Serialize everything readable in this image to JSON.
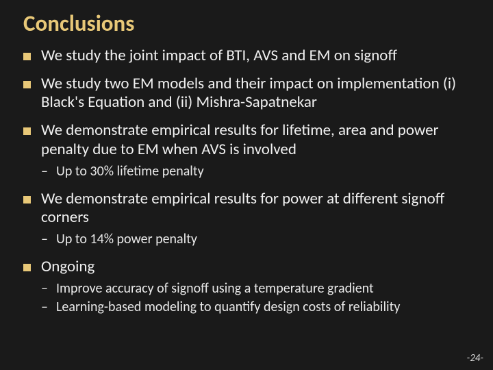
{
  "title": "Conclusions",
  "bullets": [
    {
      "text": "We study the joint impact of BTI, AVS and EM on signoff",
      "sub": []
    },
    {
      "text": "We study two EM models and their impact on implementation (i) Black's Equation and (ii) Mishra-Sapatnekar",
      "sub": []
    },
    {
      "text": "We demonstrate empirical results for lifetime, area and power penalty due to EM when AVS is involved",
      "sub": [
        "Up to 30% lifetime penalty"
      ]
    },
    {
      "text": "We demonstrate empirical results for power at different signoff corners",
      "sub": [
        "Up to 14% power penalty"
      ]
    },
    {
      "text": "Ongoing",
      "sub": [
        "Improve accuracy of signoff using a temperature gradient",
        "Learning-based modeling to quantify design costs of reliability"
      ]
    }
  ],
  "page_number": "-24-",
  "colors": {
    "background": "#1a1a1a",
    "title": "#e8c878",
    "bullet_marker": "#e8c878",
    "body_text": "#f0f0f0"
  },
  "fontsizes": {
    "title": 33,
    "bullet": 23,
    "sub": 20,
    "pagenum": 15
  }
}
